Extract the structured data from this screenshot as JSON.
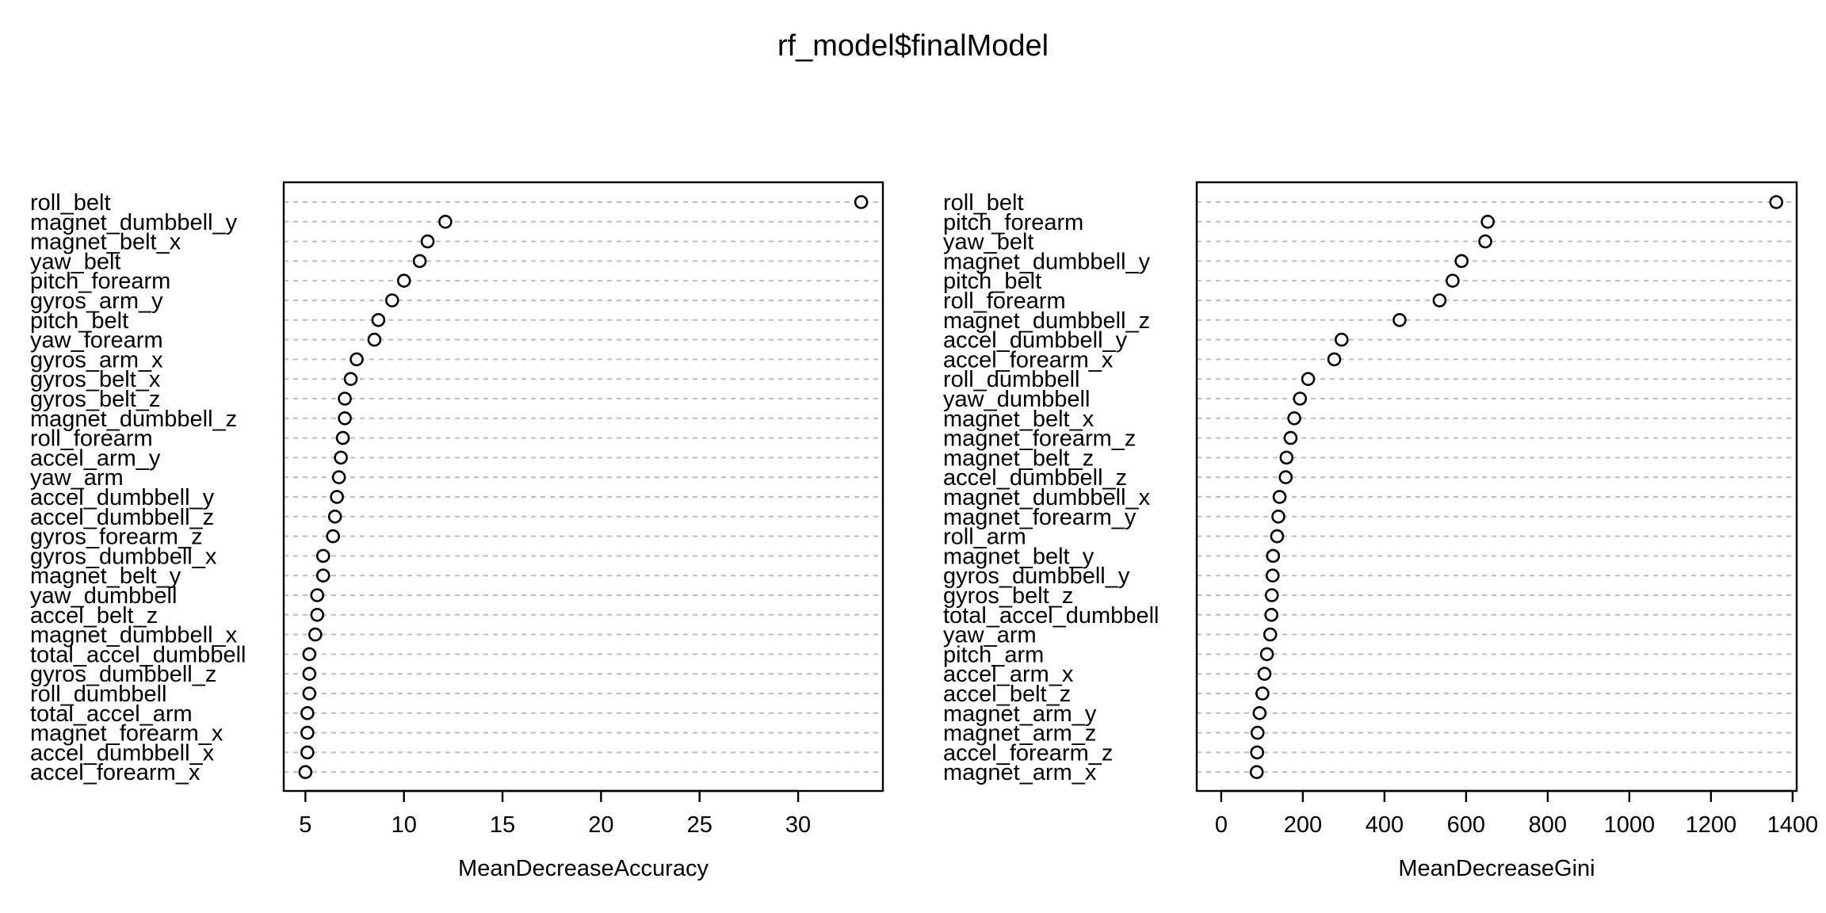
{
  "title": "rf_model$finalModel",
  "chart_data": [
    {
      "type": "scatter",
      "style": "dotchart",
      "xlabel": "MeanDecreaseAccuracy",
      "ylabel": "",
      "xlim": [
        3.9,
        34.3
      ],
      "xticks": [
        5,
        10,
        15,
        20,
        25,
        30
      ],
      "grid": "dashed horizontal guide lines",
      "variables": [
        {
          "name": "roll_belt",
          "value": 33.2
        },
        {
          "name": "magnet_dumbbell_y",
          "value": 12.1
        },
        {
          "name": "magnet_belt_x",
          "value": 11.2
        },
        {
          "name": "yaw_belt",
          "value": 10.8
        },
        {
          "name": "pitch_forearm",
          "value": 10.0
        },
        {
          "name": "gyros_arm_y",
          "value": 9.4
        },
        {
          "name": "pitch_belt",
          "value": 8.7
        },
        {
          "name": "yaw_forearm",
          "value": 8.5
        },
        {
          "name": "gyros_arm_x",
          "value": 7.6
        },
        {
          "name": "gyros_belt_x",
          "value": 7.3
        },
        {
          "name": "gyros_belt_z",
          "value": 7.0
        },
        {
          "name": "magnet_dumbbell_z",
          "value": 7.0
        },
        {
          "name": "roll_forearm",
          "value": 6.9
        },
        {
          "name": "accel_arm_y",
          "value": 6.8
        },
        {
          "name": "yaw_arm",
          "value": 6.7
        },
        {
          "name": "accel_dumbbell_y",
          "value": 6.6
        },
        {
          "name": "accel_dumbbell_z",
          "value": 6.5
        },
        {
          "name": "gyros_forearm_z",
          "value": 6.4
        },
        {
          "name": "gyros_dumbbell_x",
          "value": 5.9
        },
        {
          "name": "magnet_belt_y",
          "value": 5.9
        },
        {
          "name": "yaw_dumbbell",
          "value": 5.6
        },
        {
          "name": "accel_belt_z",
          "value": 5.6
        },
        {
          "name": "magnet_dumbbell_x",
          "value": 5.5
        },
        {
          "name": "total_accel_dumbbell",
          "value": 5.2
        },
        {
          "name": "gyros_dumbbell_z",
          "value": 5.2
        },
        {
          "name": "roll_dumbbell",
          "value": 5.2
        },
        {
          "name": "total_accel_arm",
          "value": 5.1
        },
        {
          "name": "magnet_forearm_x",
          "value": 5.1
        },
        {
          "name": "accel_dumbbell_x",
          "value": 5.1
        },
        {
          "name": "accel_forearm_x",
          "value": 5.0
        }
      ]
    },
    {
      "type": "scatter",
      "style": "dotchart",
      "xlabel": "MeanDecreaseGini",
      "ylabel": "",
      "xlim": [
        -60,
        1410
      ],
      "xticks": [
        0,
        200,
        400,
        600,
        800,
        1000,
        1200,
        1400
      ],
      "grid": "dashed horizontal guide lines",
      "variables": [
        {
          "name": "roll_belt",
          "value": 1360
        },
        {
          "name": "pitch_forearm",
          "value": 653
        },
        {
          "name": "yaw_belt",
          "value": 647
        },
        {
          "name": "magnet_dumbbell_y",
          "value": 589
        },
        {
          "name": "pitch_belt",
          "value": 567
        },
        {
          "name": "roll_forearm",
          "value": 535
        },
        {
          "name": "magnet_dumbbell_z",
          "value": 437
        },
        {
          "name": "accel_dumbbell_y",
          "value": 295
        },
        {
          "name": "accel_forearm_x",
          "value": 277
        },
        {
          "name": "roll_dumbbell",
          "value": 213
        },
        {
          "name": "yaw_dumbbell",
          "value": 193
        },
        {
          "name": "magnet_belt_x",
          "value": 179
        },
        {
          "name": "magnet_forearm_z",
          "value": 170
        },
        {
          "name": "magnet_belt_z",
          "value": 160
        },
        {
          "name": "accel_dumbbell_z",
          "value": 158
        },
        {
          "name": "magnet_dumbbell_x",
          "value": 143
        },
        {
          "name": "magnet_forearm_y",
          "value": 140
        },
        {
          "name": "roll_arm",
          "value": 137
        },
        {
          "name": "magnet_belt_y",
          "value": 127
        },
        {
          "name": "gyros_dumbbell_y",
          "value": 126
        },
        {
          "name": "gyros_belt_z",
          "value": 124
        },
        {
          "name": "total_accel_dumbbell",
          "value": 123
        },
        {
          "name": "yaw_arm",
          "value": 120
        },
        {
          "name": "pitch_arm",
          "value": 112
        },
        {
          "name": "accel_arm_x",
          "value": 106
        },
        {
          "name": "accel_belt_z",
          "value": 101
        },
        {
          "name": "magnet_arm_y",
          "value": 94
        },
        {
          "name": "magnet_arm_z",
          "value": 89
        },
        {
          "name": "accel_forearm_z",
          "value": 88
        },
        {
          "name": "magnet_arm_x",
          "value": 87
        }
      ]
    }
  ]
}
